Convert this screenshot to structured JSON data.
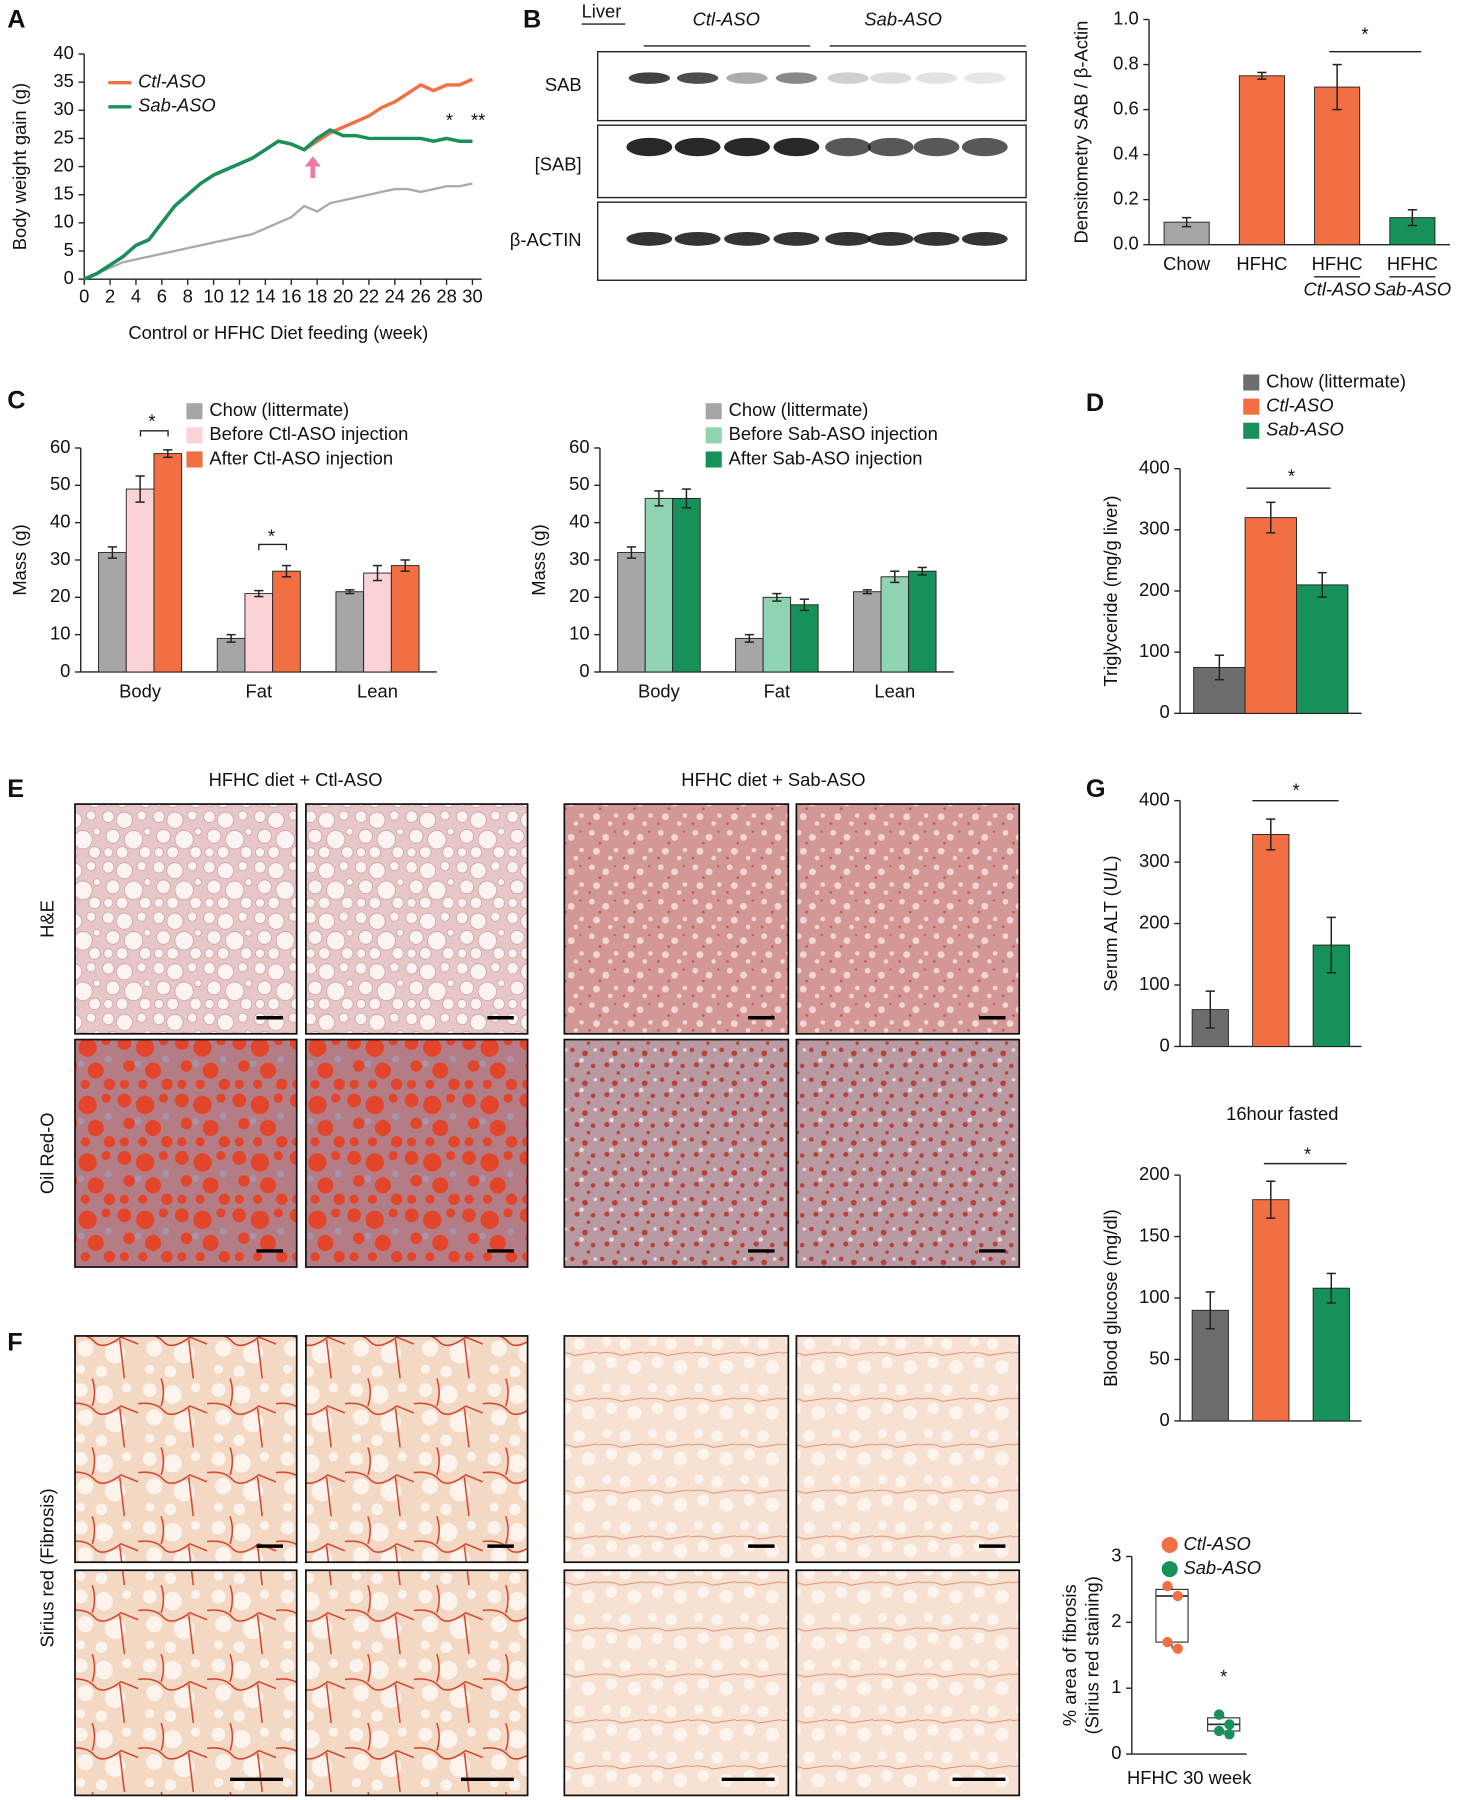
{
  "panels": [
    "A",
    "B",
    "C",
    "D",
    "E",
    "F",
    "G"
  ],
  "western_blot": {
    "tissue": "Liver",
    "groups": [
      "Ctl-ASO",
      "Sab-ASO"
    ],
    "rows": [
      "SAB",
      "[SAB]",
      "β-ACTIN"
    ]
  },
  "histology": {
    "groups": [
      "HFHC diet + Ctl-ASO",
      "HFHC diet + Sab-ASO"
    ],
    "stains": [
      "H&E",
      "Oil Red-O",
      "Sirius red (Fibrosis)"
    ]
  },
  "chart_data": [
    {
      "type": "line",
      "xlabel": "Control or HFHC Diet feeding (week)",
      "ylabel": "Body weight gain (g)",
      "x": [
        0,
        1,
        2,
        3,
        4,
        5,
        6,
        7,
        8,
        9,
        10,
        11,
        12,
        13,
        14,
        15,
        16,
        17,
        18,
        19,
        20,
        21,
        22,
        23,
        24,
        25,
        26,
        27,
        28,
        29,
        30
      ],
      "series": [
        {
          "name": "Ctl-ASO",
          "color": "#f26f43",
          "values": [
            0,
            1,
            2.5,
            4,
            6,
            7,
            10,
            13,
            15,
            17,
            18.5,
            19.5,
            20.5,
            21.5,
            23,
            24.5,
            24,
            23,
            24.5,
            26,
            27,
            28,
            29,
            30.5,
            31.5,
            33,
            34.5,
            33.5,
            34.5,
            34.5,
            35.5
          ]
        },
        {
          "name": "Sab-ASO",
          "color": "#17915a",
          "values": [
            0,
            1,
            2.5,
            4,
            6,
            7,
            10,
            13,
            15,
            17,
            18.5,
            19.5,
            20.5,
            21.5,
            23,
            24.5,
            24,
            23,
            25,
            26.5,
            25.5,
            25.5,
            25,
            25,
            25,
            25,
            25,
            24.5,
            25,
            24.5,
            24.5
          ]
        },
        {
          "color": "#a9a9a9",
          "values": [
            0,
            1,
            2,
            3,
            3.5,
            4,
            4.5,
            5,
            5.5,
            6,
            6.5,
            7,
            7.5,
            8,
            9,
            10,
            11,
            13,
            12,
            13.5,
            14,
            14.5,
            15,
            15.5,
            16,
            16,
            15.5,
            16,
            16.5,
            16.5,
            17
          ]
        }
      ],
      "xlim": [
        0,
        30
      ],
      "ylim": [
        0,
        40
      ],
      "xticks": [
        0,
        2,
        4,
        6,
        8,
        10,
        12,
        14,
        16,
        18,
        20,
        22,
        24,
        26,
        28,
        30
      ],
      "yticks": [
        0,
        5,
        10,
        15,
        20,
        25,
        30,
        35,
        40
      ],
      "legend": "upper left",
      "annotations": [
        "*",
        "**"
      ]
    },
    {
      "type": "bar",
      "ylabel": "Densitometry SAB / β-Actin",
      "categories": [
        "Chow",
        "HFHC",
        "HFHC",
        "HFHC"
      ],
      "category_sublabels": [
        null,
        null,
        "Ctl-ASO",
        "Sab-ASO"
      ],
      "values": [
        0.1,
        0.75,
        0.7,
        0.12
      ],
      "errors": [
        0.02,
        0.015,
        0.1,
        0.035
      ],
      "colors": [
        "#a6a6a6",
        "#f26f43",
        "#f26f43",
        "#17915a"
      ],
      "ylim": [
        0,
        1
      ],
      "yticks": [
        {
          "value": 0,
          "label": "0.0"
        },
        0.2,
        0.4,
        0.6,
        0.8,
        {
          "value": 1,
          "label": "1.0"
        }
      ],
      "annotations": [
        "*"
      ]
    },
    {
      "type": "bar",
      "ylabel": "Mass (g)",
      "categories": [
        "Body",
        "Fat",
        "Lean"
      ],
      "series": [
        {
          "name": "Chow (littermate)",
          "color": "#a6a6a6",
          "values": [
            32,
            9,
            21.5
          ],
          "errors": [
            1.5,
            1,
            0.5
          ]
        },
        {
          "name": "Before Ctl-ASO injection",
          "color": "#fbd3d6",
          "values": [
            49,
            21,
            26.5
          ],
          "errors": [
            3.5,
            0.8,
            2
          ]
        },
        {
          "name": "After Ctl-ASO injection",
          "color": "#f26f43",
          "values": [
            58.5,
            27,
            28.5
          ],
          "errors": [
            1,
            1.5,
            1.5
          ]
        }
      ],
      "ylim": [
        0,
        60
      ],
      "yticks": [
        0,
        10,
        20,
        30,
        40,
        50,
        60
      ],
      "legend": "upper right",
      "annotations": [
        "*",
        "*"
      ]
    },
    {
      "type": "bar",
      "ylabel": "Mass (g)",
      "categories": [
        "Body",
        "Fat",
        "Lean"
      ],
      "series": [
        {
          "name": "Chow (littermate)",
          "color": "#a6a6a6",
          "values": [
            32,
            9,
            21.5
          ],
          "errors": [
            1.5,
            1,
            0.5
          ]
        },
        {
          "name": "Before Sab-ASO injection",
          "color": "#8fd3b0",
          "values": [
            46.5,
            20,
            25.5
          ],
          "errors": [
            2,
            1,
            1.5
          ]
        },
        {
          "name": "After Sab-ASO injection",
          "color": "#17915a",
          "values": [
            46.5,
            18,
            27
          ],
          "errors": [
            2.5,
            1.5,
            1
          ]
        }
      ],
      "ylim": [
        0,
        60
      ],
      "yticks": [
        0,
        10,
        20,
        30,
        40,
        50,
        60
      ],
      "legend": "upper right"
    },
    {
      "type": "bar",
      "ylabel": "Triglyceride (mg/g liver)",
      "categories": [
        null
      ],
      "series": [
        {
          "name": "Chow (littermate)",
          "color": "#6d6d6d",
          "values": [
            75
          ],
          "errors": [
            20
          ]
        },
        {
          "name": "Ctl-ASO",
          "color": "#f26f43",
          "values": [
            320
          ],
          "errors": [
            25
          ]
        },
        {
          "name": "Sab-ASO",
          "color": "#17915a",
          "values": [
            210
          ],
          "errors": [
            20
          ]
        }
      ],
      "ylim": [
        0,
        400
      ],
      "yticks": [
        0,
        100,
        200,
        300,
        400
      ],
      "legend": "top",
      "annotations": [
        "*"
      ]
    },
    {
      "type": "bar",
      "ylabel": "Serum ALT (U/L)",
      "categories": [
        null,
        null,
        null
      ],
      "values": [
        60,
        345,
        165
      ],
      "errors": [
        30,
        25,
        45
      ],
      "colors": [
        "#6d6d6d",
        "#f26f43",
        "#17915a"
      ],
      "ylim": [
        0,
        400
      ],
      "yticks": [
        0,
        100,
        200,
        300,
        400
      ],
      "annotations": [
        "*"
      ]
    },
    {
      "type": "bar",
      "title": "16hour fasted",
      "ylabel": "Blood glucose (mg/dl)",
      "categories": [
        null,
        null,
        null
      ],
      "values": [
        90,
        180,
        108
      ],
      "errors": [
        15,
        15,
        12
      ],
      "colors": [
        "#6d6d6d",
        "#f26f43",
        "#17915a"
      ],
      "ylim": [
        0,
        200
      ],
      "yticks": [
        0,
        50,
        100,
        150,
        200
      ],
      "annotations": [
        "*"
      ]
    },
    {
      "type": "box",
      "ylabel": "% area of fibrosis",
      "ylabel2": "(Sirius red staining)",
      "xlabel": "HFHC 30 week",
      "series": [
        {
          "name": "Ctl-ASO",
          "color": "#f26f43",
          "min": 1.6,
          "q1": 1.7,
          "median": 2.4,
          "q3": 2.5,
          "max": 2.55,
          "points": [
            2.55,
            2.4,
            1.7,
            1.6
          ]
        },
        {
          "name": "Sab-ASO",
          "color": "#17915a",
          "min": 0.3,
          "q1": 0.35,
          "median": 0.45,
          "q3": 0.55,
          "max": 0.6,
          "points": [
            0.6,
            0.45,
            0.35,
            0.3
          ]
        }
      ],
      "ylim": [
        0,
        3
      ],
      "yticks": [
        0,
        1,
        2,
        3
      ],
      "legend": "top",
      "annotations": [
        "*"
      ]
    }
  ]
}
